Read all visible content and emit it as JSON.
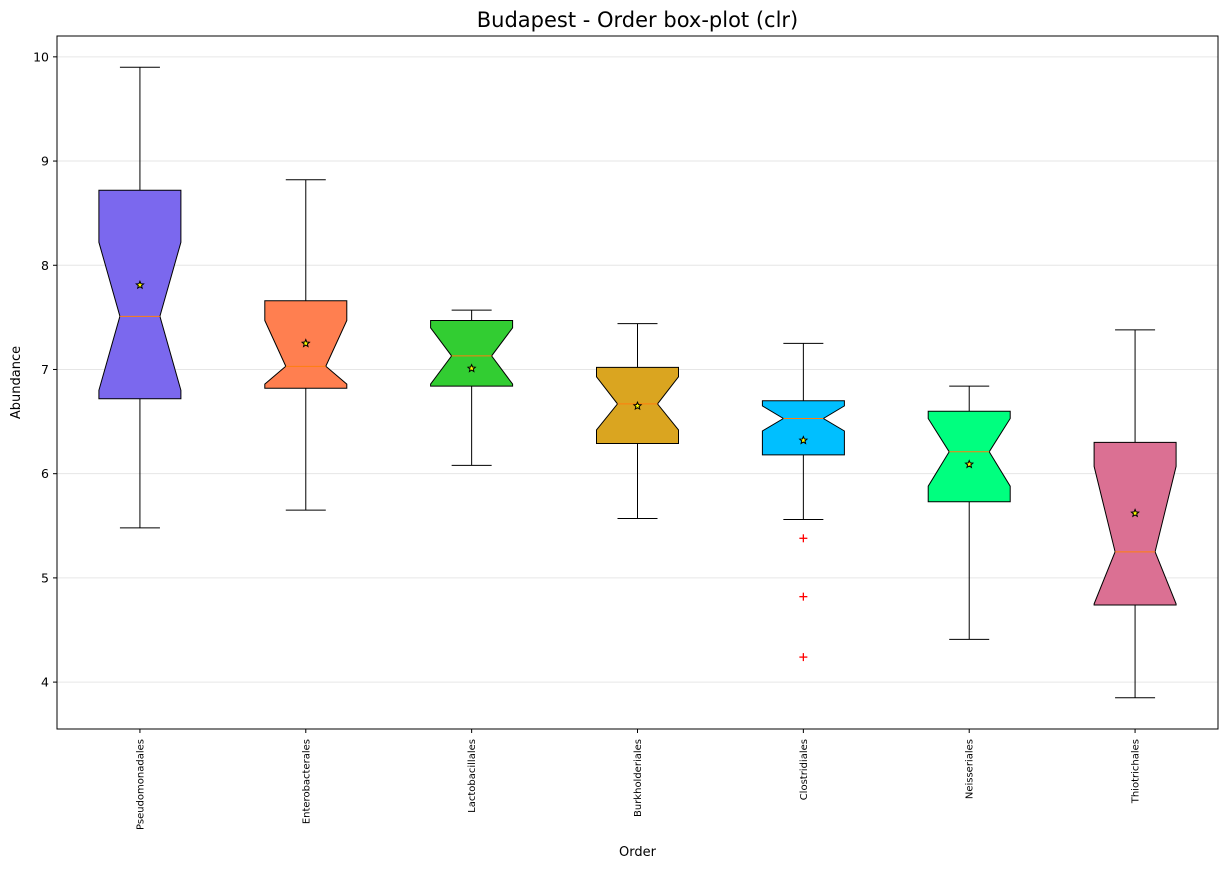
{
  "chart_data": {
    "type": "box",
    "title": "Budapest - Order box-plot (clr)",
    "xlabel": "Order",
    "ylabel": "Abundance",
    "ylim": [
      3.55,
      10.2
    ],
    "yticks": [
      4,
      5,
      6,
      7,
      8,
      9,
      10
    ],
    "grid": "horizontal",
    "notched": true,
    "categories": [
      "Pseudomonadales",
      "Enterobacterales",
      "Lactobacillales",
      "Burkholderiales",
      "Clostridiales",
      "Neisseriales",
      "Thiotrichales"
    ],
    "boxes": [
      {
        "name": "Pseudomonadales",
        "whisker_low": 5.48,
        "q1": 6.72,
        "median": 7.51,
        "q3": 8.72,
        "whisker_high": 9.9,
        "notch_low": 6.8,
        "notch_high": 8.22,
        "mean": 7.81,
        "outliers": [],
        "color": "#7B68EE"
      },
      {
        "name": "Enterobacterales",
        "whisker_low": 5.65,
        "q1": 6.82,
        "median": 7.03,
        "q3": 7.66,
        "whisker_high": 8.82,
        "notch_low": 6.86,
        "notch_high": 7.47,
        "mean": 7.25,
        "outliers": [],
        "color": "#FF7F50"
      },
      {
        "name": "Lactobacillales",
        "whisker_low": 6.08,
        "q1": 6.84,
        "median": 7.13,
        "q3": 7.47,
        "whisker_high": 7.57,
        "notch_low": 6.86,
        "notch_high": 7.4,
        "mean": 7.01,
        "outliers": [],
        "color": "#32CD32"
      },
      {
        "name": "Burkholderiales",
        "whisker_low": 5.57,
        "q1": 6.29,
        "median": 6.67,
        "q3": 7.02,
        "whisker_high": 7.44,
        "notch_low": 6.42,
        "notch_high": 6.93,
        "mean": 6.65,
        "outliers": [],
        "color": "#DAA520"
      },
      {
        "name": "Clostridiales",
        "whisker_low": 5.56,
        "q1": 6.18,
        "median": 6.53,
        "q3": 6.7,
        "whisker_high": 7.25,
        "notch_low": 6.41,
        "notch_high": 6.65,
        "mean": 6.32,
        "outliers": [
          5.38,
          4.82,
          4.24
        ],
        "color": "#00BFFF"
      },
      {
        "name": "Neisseriales",
        "whisker_low": 4.41,
        "q1": 5.73,
        "median": 6.21,
        "q3": 6.6,
        "whisker_high": 6.84,
        "notch_low": 5.88,
        "notch_high": 6.53,
        "mean": 6.09,
        "outliers": [],
        "color": "#00FF7F"
      },
      {
        "name": "Thiotrichales",
        "whisker_low": 3.85,
        "q1": 4.74,
        "median": 5.25,
        "q3": 6.3,
        "whisker_high": 7.38,
        "notch_low": 4.75,
        "notch_high": 6.07,
        "mean": 5.62,
        "outliers": [],
        "color": "#DB7093"
      }
    ]
  }
}
